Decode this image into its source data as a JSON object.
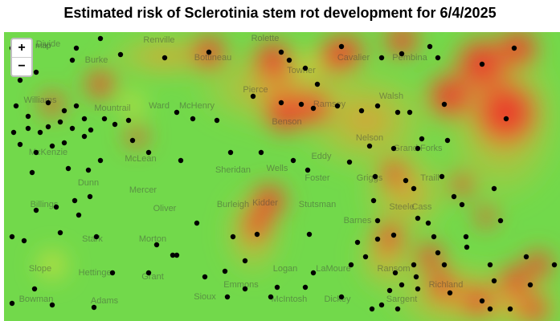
{
  "title": "Estimated risk of Sclerotinia stem rot development for 6/4/2025",
  "zoom_controls": {
    "zoom_in": "+",
    "zoom_out": "−"
  },
  "layer_label": "map",
  "county_labels": [
    "Renville",
    "Bottineau",
    "Rolette",
    "Towner",
    "Cavalier",
    "Pembina",
    "Burke",
    "Divide",
    "Williams",
    "Mountrail",
    "Ward",
    "McHenry",
    "Pierce",
    "Benson",
    "Ramsey",
    "Walsh",
    "Nelson",
    "Grand Forks",
    "McKenzie",
    "McLean",
    "Sheridan",
    "Wells",
    "Eddy",
    "Foster",
    "Griggs",
    "Traill",
    "Dunn",
    "Mercer",
    "Oliver",
    "Burleigh",
    "Kidder",
    "Stutsman",
    "Barnes",
    "Cass",
    "Billings",
    "Stark",
    "Morton",
    "Emmons",
    "Logan",
    "LaMoure",
    "Ransom",
    "Richland",
    "Grant",
    "Sioux",
    "Hettinger",
    "Adams",
    "Bowman",
    "Slope",
    "McIntosh",
    "Dickey",
    "Sargent",
    "Steele"
  ]
}
